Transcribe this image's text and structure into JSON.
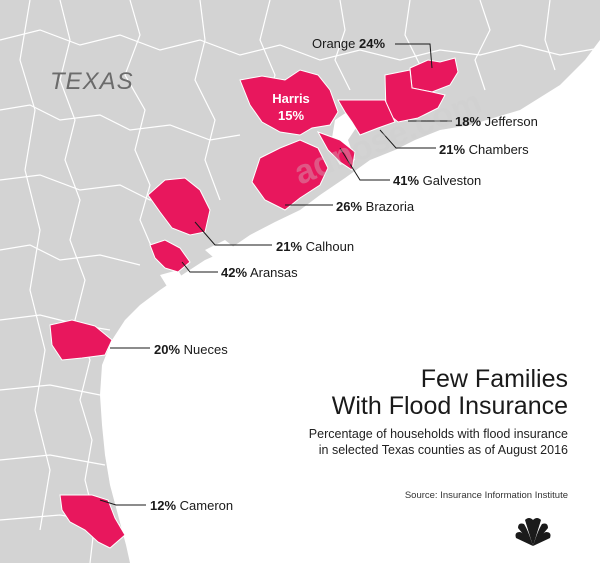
{
  "map": {
    "state_label": "TEXAS",
    "title_line1": "Few Families",
    "title_line2": "With Flood Insurance",
    "subtitle_line1": "Percentage of households with flood insurance",
    "subtitle_line2": "in selected Texas counties as of August 2016",
    "source": "Source: Insurance Information Institute",
    "colors": {
      "highlight": "#e8175d",
      "land": "#d3d3d3",
      "water": "#ffffff",
      "border": "#ffffff"
    },
    "logo_icon": "peacock-logo-icon"
  },
  "counties": [
    {
      "name": "Orange",
      "pct": "24%"
    },
    {
      "name": "Harris",
      "pct": "15%"
    },
    {
      "name": "Jefferson",
      "pct": "18%"
    },
    {
      "name": "Chambers",
      "pct": "21%"
    },
    {
      "name": "Galveston",
      "pct": "41%"
    },
    {
      "name": "Brazoria",
      "pct": "26%"
    },
    {
      "name": "Calhoun",
      "pct": "21%"
    },
    {
      "name": "Aransas",
      "pct": "42%"
    },
    {
      "name": "Nueces",
      "pct": "20%"
    },
    {
      "name": "Cameron",
      "pct": "12%"
    }
  ]
}
